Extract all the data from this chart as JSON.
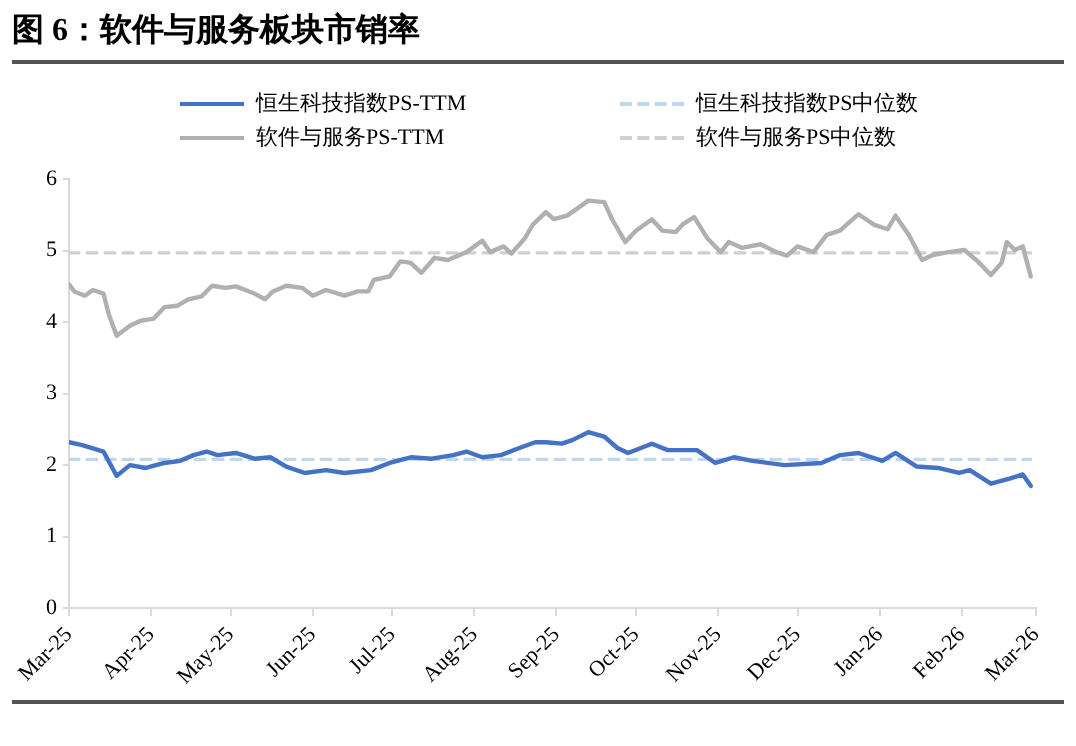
{
  "chart_data": {
    "type": "line",
    "title": "图 6：软件与服务板块市销率",
    "legend": "top",
    "grid": false,
    "marker": "none",
    "xlim": [
      "2025-03-01",
      "2026-03-01"
    ],
    "xticks": [
      {
        "value": "2025-03-01",
        "label": "Mar-25"
      },
      {
        "value": "2025-04-01",
        "label": "Apr-25"
      },
      {
        "value": "2025-05-01",
        "label": "May-25"
      },
      {
        "value": "2025-06-01",
        "label": "Jun-25"
      },
      {
        "value": "2025-07-01",
        "label": "Jul-25"
      },
      {
        "value": "2025-08-01",
        "label": "Aug-25"
      },
      {
        "value": "2025-09-01",
        "label": "Sep-25"
      },
      {
        "value": "2025-10-01",
        "label": "Oct-25"
      },
      {
        "value": "2025-11-01",
        "label": "Nov-25"
      },
      {
        "value": "2025-12-01",
        "label": "Dec-25"
      },
      {
        "value": "2026-01-01",
        "label": "Jan-26"
      },
      {
        "value": "2026-02-01",
        "label": "Feb-26"
      },
      {
        "value": "2026-03-01",
        "label": "Mar-26"
      }
    ],
    "ylim": [
      0,
      6
    ],
    "yticks": [
      0,
      1,
      2,
      3,
      4,
      5,
      6
    ],
    "series": [
      {
        "name": "恒生科技指数PS-TTM",
        "color": "#4472c4",
        "line_style": "solid",
        "x": [
          "2025-03-01",
          "2025-03-06",
          "2025-03-14",
          "2025-03-19",
          "2025-03-24",
          "2025-03-30",
          "2025-04-06",
          "2025-04-12",
          "2025-04-17",
          "2025-04-22",
          "2025-04-26",
          "2025-05-03",
          "2025-05-10",
          "2025-05-16",
          "2025-05-22",
          "2025-05-29",
          "2025-06-06",
          "2025-06-13",
          "2025-06-23",
          "2025-06-30",
          "2025-07-08",
          "2025-07-16",
          "2025-07-24",
          "2025-07-29",
          "2025-08-04",
          "2025-08-11",
          "2025-08-18",
          "2025-08-24",
          "2025-08-28",
          "2025-09-03",
          "2025-09-07",
          "2025-09-13",
          "2025-09-19",
          "2025-09-24",
          "2025-09-28",
          "2025-10-07",
          "2025-10-13",
          "2025-10-24",
          "2025-10-31",
          "2025-11-07",
          "2025-11-14",
          "2025-11-26",
          "2025-12-10",
          "2025-12-17",
          "2025-12-24",
          "2026-01-02",
          "2026-01-07",
          "2026-01-15",
          "2026-01-23",
          "2026-01-31",
          "2026-02-04",
          "2026-02-12",
          "2026-02-19",
          "2026-02-24",
          "2026-02-27"
        ],
        "values": [
          2.32,
          2.28,
          2.19,
          1.85,
          2.0,
          1.96,
          2.03,
          2.06,
          2.14,
          2.19,
          2.14,
          2.17,
          2.09,
          2.11,
          1.98,
          1.89,
          1.93,
          1.89,
          1.93,
          2.03,
          2.11,
          2.09,
          2.14,
          2.19,
          2.11,
          2.14,
          2.24,
          2.32,
          2.32,
          2.3,
          2.35,
          2.46,
          2.4,
          2.24,
          2.17,
          2.3,
          2.21,
          2.21,
          2.03,
          2.11,
          2.06,
          2.0,
          2.03,
          2.14,
          2.17,
          2.06,
          2.17,
          1.98,
          1.96,
          1.89,
          1.93,
          1.74,
          1.81,
          1.87,
          1.71
        ]
      },
      {
        "name": "恒生科技指数PS中位数",
        "color": "#bdd7ee",
        "line_style": "dashed",
        "x": [
          "2025-03-01",
          "2026-02-27"
        ],
        "values": [
          2.08,
          2.08
        ]
      },
      {
        "name": "软件与服务PS-TTM",
        "color": "#b0b0b0",
        "line_style": "solid",
        "x": [
          "2025-03-01",
          "2025-03-03",
          "2025-03-07",
          "2025-03-10",
          "2025-03-14",
          "2025-03-16",
          "2025-03-19",
          "2025-03-24",
          "2025-03-28",
          "2025-04-02",
          "2025-04-06",
          "2025-04-11",
          "2025-04-15",
          "2025-04-20",
          "2025-04-24",
          "2025-04-29",
          "2025-05-03",
          "2025-05-10",
          "2025-05-14",
          "2025-05-17",
          "2025-05-22",
          "2025-05-28",
          "2025-06-01",
          "2025-06-06",
          "2025-06-13",
          "2025-06-18",
          "2025-06-22",
          "2025-06-24",
          "2025-06-30",
          "2025-07-04",
          "2025-07-08",
          "2025-07-12",
          "2025-07-17",
          "2025-07-22",
          "2025-07-29",
          "2025-08-04",
          "2025-08-07",
          "2025-08-12",
          "2025-08-15",
          "2025-08-20",
          "2025-08-23",
          "2025-08-28",
          "2025-08-31",
          "2025-09-05",
          "2025-09-10",
          "2025-09-13",
          "2025-09-19",
          "2025-09-22",
          "2025-09-27",
          "2025-10-01",
          "2025-10-07",
          "2025-10-11",
          "2025-10-16",
          "2025-10-19",
          "2025-10-23",
          "2025-10-28",
          "2025-11-02",
          "2025-11-05",
          "2025-11-10",
          "2025-11-17",
          "2025-11-23",
          "2025-11-27",
          "2025-12-01",
          "2025-12-07",
          "2025-12-12",
          "2025-12-17",
          "2025-12-24",
          "2025-12-30",
          "2026-01-04",
          "2026-01-07",
          "2026-01-12",
          "2026-01-17",
          "2026-01-21",
          "2026-01-27",
          "2026-02-02",
          "2026-02-07",
          "2026-02-12",
          "2026-02-16",
          "2026-02-18",
          "2026-02-21",
          "2026-02-24",
          "2026-02-27"
        ],
        "values": [
          4.53,
          4.43,
          4.37,
          4.45,
          4.4,
          4.11,
          3.81,
          3.95,
          4.02,
          4.05,
          4.21,
          4.23,
          4.32,
          4.36,
          4.51,
          4.48,
          4.5,
          4.4,
          4.32,
          4.43,
          4.51,
          4.48,
          4.37,
          4.45,
          4.37,
          4.43,
          4.43,
          4.59,
          4.64,
          4.85,
          4.83,
          4.69,
          4.9,
          4.87,
          4.98,
          5.14,
          4.98,
          5.06,
          4.96,
          5.17,
          5.36,
          5.54,
          5.44,
          5.49,
          5.62,
          5.7,
          5.68,
          5.44,
          5.12,
          5.28,
          5.44,
          5.28,
          5.26,
          5.38,
          5.47,
          5.17,
          4.98,
          5.12,
          5.04,
          5.09,
          4.98,
          4.93,
          5.06,
          4.98,
          5.22,
          5.28,
          5.51,
          5.36,
          5.3,
          5.49,
          5.22,
          4.87,
          4.94,
          4.98,
          5.01,
          4.85,
          4.66,
          4.83,
          5.12,
          5.01,
          5.06,
          4.64
        ]
      },
      {
        "name": "软件与服务PS中位数",
        "color": "#d0d0d0",
        "line_style": "dashed",
        "x": [
          "2025-03-01",
          "2026-02-27"
        ],
        "values": [
          4.97,
          4.97
        ]
      }
    ]
  }
}
